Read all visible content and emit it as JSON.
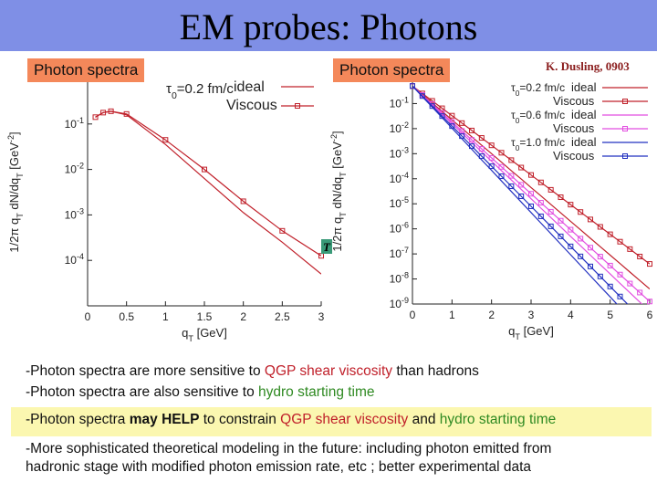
{
  "title": "EM probes: Photons",
  "badge_left": "Photon spectra",
  "badge_right": "Photon spectra",
  "credit": "K. Dusling, 0903",
  "colors": {
    "title_bar": "#7f8fe6",
    "badge": "#f4885a",
    "red": "#c0202a",
    "magenta": "#e24ee0",
    "blue": "#2230c0",
    "green": "#2f8a22",
    "highlight": "#fbf7b0"
  },
  "chart_data": [
    {
      "type": "line",
      "xlabel": "q_T [GeV]",
      "ylabel": "1/2π q_T dN/dq_T [GeV^-2]",
      "xlim": [
        0,
        3
      ],
      "ylim_log10": [
        -5,
        0
      ],
      "x_ticks": [
        "0",
        "0.5",
        "1",
        "1.5",
        "2",
        "2.5",
        "3"
      ],
      "y_ticks": [
        "10",
        "10-1",
        "10-2",
        "10-3",
        "10-4"
      ],
      "legend_position": "top-right",
      "annotation": "τ0=0.2 fm/c",
      "side_marker": "T",
      "series": [
        {
          "name": "ideal",
          "color": "#c0202a",
          "marker": "none",
          "x": [
            0.1,
            0.2,
            0.3,
            0.5,
            1.0,
            1.5,
            2.0,
            2.5,
            3.0
          ],
          "log10_y": [
            -0.85,
            -0.75,
            -0.72,
            -0.8,
            -1.45,
            -2.2,
            -2.95,
            -3.6,
            -4.3
          ]
        },
        {
          "name": "Viscous",
          "color": "#c0202a",
          "marker": "square",
          "x": [
            0.1,
            0.2,
            0.3,
            0.5,
            1.0,
            1.5,
            2.0,
            2.5,
            3.0
          ],
          "log10_y": [
            -0.85,
            -0.75,
            -0.72,
            -0.78,
            -1.35,
            -2.0,
            -2.7,
            -3.35,
            -3.9
          ]
        }
      ]
    },
    {
      "type": "line",
      "xlabel": "q_T [GeV]",
      "ylabel": "1/2π q_T dN/dq_T [GeV^-2]",
      "xlim": [
        0,
        6
      ],
      "ylim_log10": [
        -9,
        0
      ],
      "x_ticks": [
        "0",
        "1",
        "2",
        "3",
        "4",
        "5",
        "6"
      ],
      "y_ticks": [
        "10",
        "10-1",
        "10-2",
        "10-3",
        "10-4",
        "10-5",
        "10-6",
        "10-7",
        "10-8",
        "10-9"
      ],
      "legend_position": "top-right",
      "legend_groups": [
        {
          "label": "τ0=0.2 fm/c",
          "entries": [
            "ideal",
            "Viscous"
          ]
        },
        {
          "label": "τ0=0.6 fm/c",
          "entries": [
            "ideal",
            "Viscous"
          ]
        },
        {
          "label": "τ0=1.0 fm/c",
          "entries": [
            "ideal",
            "Viscous"
          ]
        }
      ],
      "series": [
        {
          "name": "ideal",
          "group": "τ0=0.2 fm/c",
          "color": "#c0202a",
          "marker": "none",
          "x": [
            0,
            6
          ],
          "log10_y": [
            -0.3,
            -8.4
          ]
        },
        {
          "name": "Viscous",
          "group": "τ0=0.2 fm/c",
          "color": "#c0202a",
          "marker": "square",
          "x": [
            0,
            6
          ],
          "log10_y": [
            -0.3,
            -7.4
          ]
        },
        {
          "name": "ideal",
          "group": "τ0=0.6 fm/c",
          "color": "#e24ee0",
          "marker": "none",
          "x": [
            0,
            6
          ],
          "log10_y": [
            -0.3,
            -9.3
          ]
        },
        {
          "name": "Viscous",
          "group": "τ0=0.6 fm/c",
          "color": "#e24ee0",
          "marker": "square",
          "x": [
            0,
            6
          ],
          "log10_y": [
            -0.3,
            -8.9
          ]
        },
        {
          "name": "ideal",
          "group": "τ0=1.0 fm/c",
          "color": "#2230c0",
          "marker": "none",
          "x": [
            0,
            6
          ],
          "log10_y": [
            -0.3,
            -10.4
          ]
        },
        {
          "name": "Viscous",
          "group": "τ0=1.0 fm/c",
          "color": "#2230c0",
          "marker": "square",
          "x": [
            0,
            6
          ],
          "log10_y": [
            -0.3,
            -9.9
          ]
        }
      ]
    }
  ],
  "bullets": {
    "b1_a": "-Photon spectra are more sensitive to ",
    "b1_b": "QGP shear viscosity",
    "b1_c": " than hadrons",
    "b2_a": "-Photon spectra are also sensitive to ",
    "b2_b": "hydro starting time",
    "b3_a": "-Photon spectra ",
    "b3_b": "may HELP",
    "b3_c": " to constrain ",
    "b3_d": "QGP shear viscosity",
    "b3_e": " and ",
    "b3_f": "hydro starting time",
    "b4_line1": "-More sophisticated theoretical modeling in the future: including photon emitted from",
    "b4_line2": "hadronic stage with modified photon emission rate, etc ;  better experimental data"
  }
}
